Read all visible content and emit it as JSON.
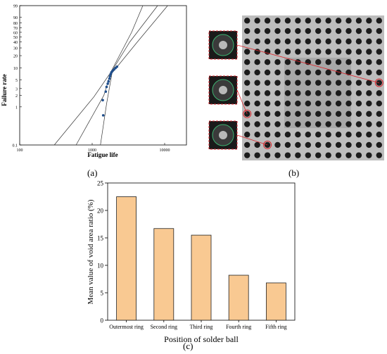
{
  "panels": {
    "a": {
      "caption": "(a)"
    },
    "b": {
      "caption": "(b)"
    },
    "c": {
      "caption": "(c)"
    }
  },
  "chart_data": [
    {
      "id": "a",
      "type": "scatter",
      "xlabel": "Fatigue life",
      "ylabel": "Failure rate",
      "x_scale": "log",
      "y_scale": "weibull-probability",
      "xlim": [
        100,
        20000
      ],
      "ylim": [
        0.1,
        99
      ],
      "x_ticks": [
        "100",
        "1000",
        "10000"
      ],
      "y_ticks": [
        "0.1",
        "1",
        "2",
        "3",
        "5",
        "10",
        "20",
        "30",
        "40",
        "50",
        "60",
        "70",
        "80",
        "90",
        "99"
      ],
      "points": [
        {
          "x": 1420,
          "y": 0.6
        },
        {
          "x": 1400,
          "y": 1.5
        },
        {
          "x": 1540,
          "y": 2.5
        },
        {
          "x": 1580,
          "y": 3.3
        },
        {
          "x": 1640,
          "y": 4.0
        },
        {
          "x": 1680,
          "y": 4.6
        },
        {
          "x": 1730,
          "y": 5.4
        },
        {
          "x": 1760,
          "y": 6.2
        },
        {
          "x": 1800,
          "y": 7.0
        },
        {
          "x": 1840,
          "y": 7.8
        },
        {
          "x": 1900,
          "y": 8.4
        },
        {
          "x": 2000,
          "y": 9.2
        },
        {
          "x": 2100,
          "y": 10.0
        },
        {
          "x": 2200,
          "y": 10.8
        }
      ],
      "lines": [
        {
          "points": [
            [
              300,
              0.1
            ],
            [
              1050,
              1.8
            ],
            [
              1780,
              7.5
            ],
            [
              3500,
              60
            ],
            [
              5000,
              99
            ]
          ]
        },
        {
          "points": [
            [
              600,
              0.1
            ],
            [
              1450,
              2.0
            ],
            [
              1800,
              7.5
            ],
            [
              3300,
              40
            ],
            [
              8000,
              99
            ]
          ]
        },
        {
          "points": [
            [
              1300,
              0.1
            ],
            [
              1580,
              1.2
            ],
            [
              1880,
              7.5
            ],
            [
              4200,
              40
            ],
            [
              11000,
              99
            ]
          ]
        }
      ],
      "grid": false,
      "marker_color": "#1f4e8c"
    },
    {
      "id": "c",
      "type": "bar",
      "categories": [
        "Outermost ring",
        "Second ring",
        "Third ring",
        "Fourth ring",
        "Fifth ring"
      ],
      "values": [
        22.5,
        16.7,
        15.5,
        8.2,
        6.8
      ],
      "xlabel": "Position of solder ball",
      "ylabel": "Mean value of void area ratio (%)",
      "ylim": [
        0,
        25
      ],
      "y_ticks": [
        "0",
        "5",
        "10",
        "15",
        "20",
        "25"
      ],
      "bar_color": "#f9c992",
      "bar_edge": "#222222"
    }
  ],
  "xray": {
    "grid_rows": 14,
    "grid_cols": 14,
    "highlight_color": "#d9262c",
    "background": "#bdbdbd",
    "ball_color": "#1b1b1b"
  }
}
